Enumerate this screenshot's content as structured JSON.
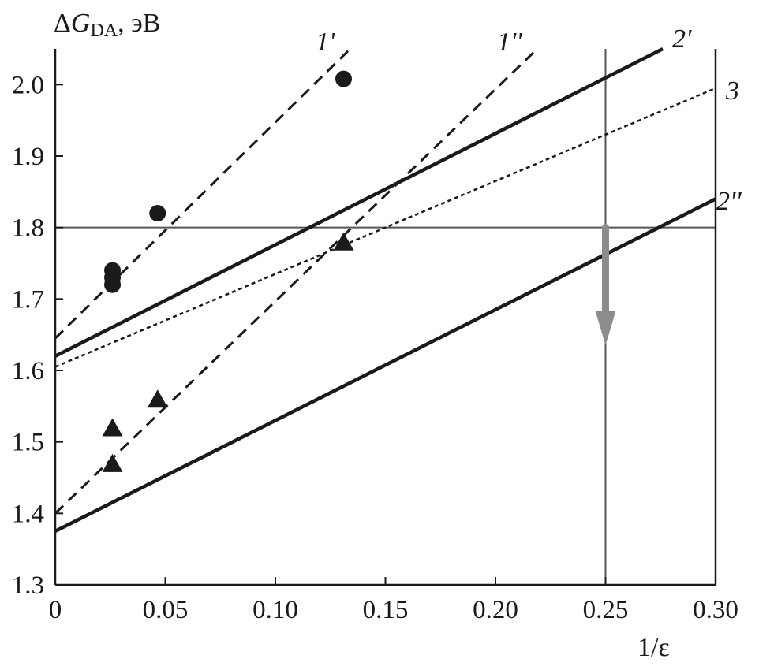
{
  "chart_data": {
    "type": "scatter",
    "y_title": {
      "prefix": "Δ",
      "symbol": "G",
      "subscript": "DA",
      "unit": ", эВ"
    },
    "xlabel": "1/ε",
    "xlim": [
      0,
      0.3
    ],
    "ylim": [
      1.3,
      2.05
    ],
    "x_ticks": [
      0,
      0.05,
      0.1,
      0.15,
      0.2,
      0.25,
      0.3
    ],
    "x_tick_labels": [
      "0",
      "0.05",
      "0.10",
      "0.15",
      "0.20",
      "0.25",
      "0.30"
    ],
    "y_ticks": [
      1.3,
      1.4,
      1.5,
      1.6,
      1.7,
      1.8,
      1.9,
      2.0
    ],
    "y_tick_labels": [
      "1.3",
      "1.4",
      "1.5",
      "1.6",
      "1.7",
      "1.8",
      "1.9",
      "2.0"
    ],
    "reference_lines": {
      "y": 1.8,
      "x": 0.25
    },
    "arrow": {
      "x": 0.25,
      "from_y": 1.8,
      "to_y": 1.635
    },
    "lines": [
      {
        "label": "1'",
        "style": "dashed",
        "x": [
          0,
          0.134
        ],
        "y": [
          1.645,
          2.05
        ]
      },
      {
        "label": "1''",
        "style": "dashed",
        "x": [
          0,
          0.219
        ],
        "y": [
          1.4,
          2.05
        ]
      },
      {
        "label": "2'",
        "style": "solid",
        "x": [
          0,
          0.276
        ],
        "y": [
          1.62,
          2.05
        ]
      },
      {
        "label": "3",
        "style": "dotted",
        "x": [
          0,
          0.3
        ],
        "y": [
          1.605,
          1.995
        ]
      },
      {
        "label": "2''",
        "style": "solid",
        "x": [
          0,
          0.3
        ],
        "y": [
          1.375,
          1.84
        ]
      }
    ],
    "series": [
      {
        "marker": "circle",
        "points": [
          [
            0.026,
            1.74
          ],
          [
            0.026,
            1.73
          ],
          [
            0.026,
            1.72
          ],
          [
            0.0465,
            1.82
          ],
          [
            0.131,
            2.008
          ]
        ]
      },
      {
        "marker": "triangle",
        "points": [
          [
            0.026,
            1.52
          ],
          [
            0.026,
            1.47
          ],
          [
            0.0465,
            1.56
          ],
          [
            0.131,
            1.78
          ]
        ]
      }
    ],
    "colors": {
      "ink": "#1a1a1a",
      "ref_line": "#555555",
      "arrow": "#8c8c8c",
      "background": "#ffffff"
    }
  }
}
